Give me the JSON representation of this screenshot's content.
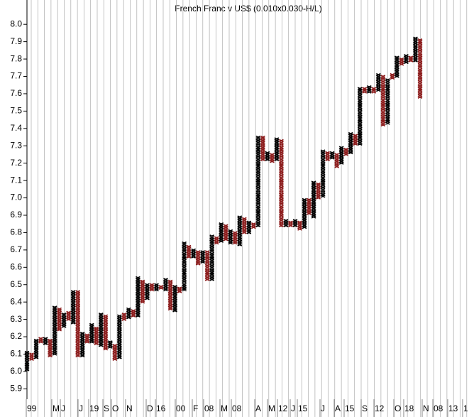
{
  "chart_data": {
    "type": "point-and-figure",
    "title": "French Franc v US$ (0.010x0.030-H/L)",
    "ylim": [
      5.84,
      8.14
    ],
    "yticks": [
      5.9,
      {
        "value": 6,
        "label": "6.0"
      },
      6.1,
      6.2,
      6.3,
      6.4,
      6.5,
      6.6,
      6.7,
      6.8,
      6.9,
      {
        "value": 7,
        "label": "7.0"
      },
      7.1,
      7.2,
      7.3,
      7.4,
      7.5,
      7.6,
      7.7,
      7.8,
      7.9,
      {
        "value": 8,
        "label": "8.0"
      }
    ],
    "x_labels": [
      "99",
      "M",
      "J",
      "J",
      "19",
      "S",
      "O",
      "N",
      "D",
      "16",
      "00",
      "F",
      "08",
      "M",
      "08",
      "A",
      "M",
      "12",
      "J",
      "15",
      "J",
      "A",
      "15",
      "S",
      "12",
      "O",
      "18",
      "N",
      "08",
      "13",
      "1"
    ],
    "colors": {
      "X": "#000000",
      "O": "#8b1a1a"
    },
    "columns": [
      {
        "type": "X",
        "low": 6.01,
        "high": 6.11
      },
      {
        "type": "O",
        "low": 6.07,
        "high": 6.1
      },
      {
        "type": "X",
        "low": 6.08,
        "high": 6.18
      },
      {
        "type": "O",
        "low": 6.17,
        "high": 6.19
      },
      {
        "type": "X",
        "low": 6.16,
        "high": 6.19
      },
      {
        "type": "O",
        "low": 6.09,
        "high": 6.18
      },
      {
        "type": "X",
        "low": 6.1,
        "high": 6.37
      },
      {
        "type": "O",
        "low": 6.24,
        "high": 6.36
      },
      {
        "type": "X",
        "low": 6.26,
        "high": 6.33
      },
      {
        "type": "O",
        "low": 6.3,
        "high": 6.34
      },
      {
        "type": "X",
        "low": 6.28,
        "high": 6.46
      },
      {
        "type": "O",
        "low": 6.09,
        "high": 6.46
      },
      {
        "type": "X",
        "low": 6.09,
        "high": 6.22
      },
      {
        "type": "O",
        "low": 6.17,
        "high": 6.21
      },
      {
        "type": "X",
        "low": 6.17,
        "high": 6.27
      },
      {
        "type": "O",
        "low": 6.16,
        "high": 6.25
      },
      {
        "type": "X",
        "low": 6.15,
        "high": 6.33
      },
      {
        "type": "O",
        "low": 6.13,
        "high": 6.32
      },
      {
        "type": "X",
        "low": 6.14,
        "high": 6.17
      },
      {
        "type": "O",
        "low": 6.07,
        "high": 6.15
      },
      {
        "type": "X",
        "low": 6.08,
        "high": 6.32
      },
      {
        "type": "O",
        "low": 6.3,
        "high": 6.33
      },
      {
        "type": "X",
        "low": 6.31,
        "high": 6.36
      },
      {
        "type": "O",
        "low": 6.32,
        "high": 6.35
      },
      {
        "type": "X",
        "low": 6.32,
        "high": 6.54
      },
      {
        "type": "O",
        "low": 6.4,
        "high": 6.52
      },
      {
        "type": "X",
        "low": 6.42,
        "high": 6.5
      },
      {
        "type": "O",
        "low": 6.47,
        "high": 6.5
      },
      {
        "type": "X",
        "low": 6.47,
        "high": 6.5
      },
      {
        "type": "O",
        "low": 6.48,
        "high": 6.49
      },
      {
        "type": "X",
        "low": 6.47,
        "high": 6.53
      },
      {
        "type": "O",
        "low": 6.36,
        "high": 6.52
      },
      {
        "type": "X",
        "low": 6.35,
        "high": 6.49
      },
      {
        "type": "O",
        "low": 6.46,
        "high": 6.48
      },
      {
        "type": "X",
        "low": 6.47,
        "high": 6.74
      },
      {
        "type": "O",
        "low": 6.66,
        "high": 6.72
      },
      {
        "type": "X",
        "low": 6.66,
        "high": 6.7
      },
      {
        "type": "O",
        "low": 6.62,
        "high": 6.69
      },
      {
        "type": "X",
        "low": 6.63,
        "high": 6.69
      },
      {
        "type": "O",
        "low": 6.53,
        "high": 6.69
      },
      {
        "type": "X",
        "low": 6.53,
        "high": 6.78
      },
      {
        "type": "O",
        "low": 6.74,
        "high": 6.77
      },
      {
        "type": "X",
        "low": 6.75,
        "high": 6.85
      },
      {
        "type": "O",
        "low": 6.76,
        "high": 6.84
      },
      {
        "type": "X",
        "low": 6.74,
        "high": 6.81
      },
      {
        "type": "O",
        "low": 6.74,
        "high": 6.8
      },
      {
        "type": "X",
        "low": 6.73,
        "high": 6.89
      },
      {
        "type": "O",
        "low": 6.8,
        "high": 6.88
      },
      {
        "type": "X",
        "low": 6.8,
        "high": 6.86
      },
      {
        "type": "O",
        "low": 6.83,
        "high": 6.85
      },
      {
        "type": "X",
        "low": 6.84,
        "high": 7.35
      },
      {
        "type": "O",
        "low": 7.22,
        "high": 7.35
      },
      {
        "type": "X",
        "low": 7.22,
        "high": 7.26
      },
      {
        "type": "O",
        "low": 7.21,
        "high": 7.25
      },
      {
        "type": "X",
        "low": 7.22,
        "high": 7.34
      },
      {
        "type": "O",
        "low": 6.84,
        "high": 7.33
      },
      {
        "type": "X",
        "low": 6.84,
        "high": 6.87
      },
      {
        "type": "O",
        "low": 6.84,
        "high": 6.86
      },
      {
        "type": "X",
        "low": 6.84,
        "high": 6.87
      },
      {
        "type": "O",
        "low": 6.82,
        "high": 6.86
      },
      {
        "type": "X",
        "low": 6.83,
        "high": 6.99
      },
      {
        "type": "O",
        "low": 6.91,
        "high": 6.99
      },
      {
        "type": "X",
        "low": 6.89,
        "high": 7.09
      },
      {
        "type": "O",
        "low": 7.0,
        "high": 7.08
      },
      {
        "type": "X",
        "low": 7.01,
        "high": 7.27
      },
      {
        "type": "O",
        "low": 7.22,
        "high": 7.26
      },
      {
        "type": "X",
        "low": 7.23,
        "high": 7.26
      },
      {
        "type": "O",
        "low": 7.18,
        "high": 7.25
      },
      {
        "type": "X",
        "low": 7.2,
        "high": 7.29
      },
      {
        "type": "O",
        "low": 7.25,
        "high": 7.28
      },
      {
        "type": "X",
        "low": 7.26,
        "high": 7.37
      },
      {
        "type": "O",
        "low": 7.31,
        "high": 7.36
      },
      {
        "type": "X",
        "low": 7.31,
        "high": 7.63
      },
      {
        "type": "O",
        "low": 7.61,
        "high": 7.63
      },
      {
        "type": "X",
        "low": 7.61,
        "high": 7.64
      },
      {
        "type": "O",
        "low": 7.61,
        "high": 7.63
      },
      {
        "type": "X",
        "low": 7.62,
        "high": 7.71
      },
      {
        "type": "O",
        "low": 7.42,
        "high": 7.7
      },
      {
        "type": "X",
        "low": 7.43,
        "high": 7.68
      },
      {
        "type": "O",
        "low": 7.69,
        "high": 7.71
      },
      {
        "type": "X",
        "low": 7.7,
        "high": 7.81
      },
      {
        "type": "O",
        "low": 7.77,
        "high": 7.8
      },
      {
        "type": "X",
        "low": 7.78,
        "high": 7.82
      },
      {
        "type": "O",
        "low": 7.79,
        "high": 7.81
      },
      {
        "type": "X",
        "low": 7.79,
        "high": 7.92
      },
      {
        "type": "O",
        "low": 7.58,
        "high": 7.91
      }
    ]
  }
}
